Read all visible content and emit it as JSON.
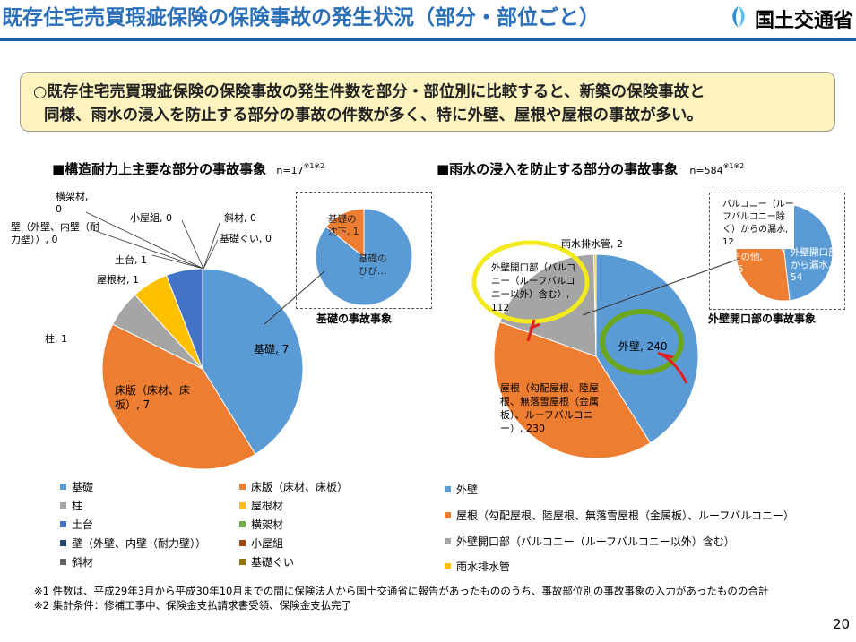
{
  "header": {
    "title": "既存住宅売買瑕疵保険の保険事故の発生状況（部分・部位ごと）",
    "logo_text": "国土交通省"
  },
  "summary": {
    "line1": "○既存住宅売買瑕疵保険の保険事故の発生件数を部分・部位別に比較すると、新築の保険事故と",
    "line2": "同様、雨水の浸入を防止する部分の事故の件数が多く、特に外壁、屋根や屋根の事故が多い。"
  },
  "colors": {
    "blue": "#5b9bd5",
    "orange": "#ed7d31",
    "gray": "#a5a5a5",
    "yellow": "#ffc000",
    "darkblue": "#4472c4",
    "green": "#70ad47",
    "navy": "#264478",
    "brown": "#9e480e",
    "darkgray": "#636363",
    "olive": "#997300"
  },
  "chart_data": [
    {
      "type": "pie",
      "title": "■構造耐力上主要な部分の事故事象",
      "n_note": "n=17",
      "n_sup": "※1※2",
      "slices": [
        {
          "name": "基礎",
          "value": 7,
          "label": "基礎, 7"
        },
        {
          "name": "床版（床材、床板）",
          "value": 7,
          "label": "床版（床材、床板）, 7"
        },
        {
          "name": "柱",
          "value": 1,
          "label": "柱, 1"
        },
        {
          "name": "屋根材",
          "value": 1,
          "label": "屋根材, 1"
        },
        {
          "name": "土台",
          "value": 1,
          "label": "土台, 1"
        },
        {
          "name": "横架材",
          "value": 0,
          "label": "横架材, 0"
        },
        {
          "name": "壁（外壁、内壁（耐力壁））",
          "value": 0,
          "label": "壁（外壁、内壁（耐力壁））, 0"
        },
        {
          "name": "小屋組",
          "value": 0,
          "label": "小屋組, 0"
        },
        {
          "name": "斜材",
          "value": 0,
          "label": "斜材, 0"
        },
        {
          "name": "基礎ぐい",
          "value": 0,
          "label": "基礎ぐい, 0"
        }
      ],
      "legend": [
        "基礎",
        "床版（床材、床板）",
        "柱",
        "屋根材",
        "土台",
        "横架材",
        "壁（外壁、内壁（耐力壁））",
        "小屋組",
        "斜材",
        "基礎ぐい"
      ],
      "inset": {
        "type": "pie",
        "title": "基礎の事故事象",
        "slices": [
          {
            "name": "基礎のひび割れ",
            "value": 6,
            "label": "基礎のひび…"
          },
          {
            "name": "基礎の沈下",
            "value": 1,
            "label": "基礎の沈下, 1"
          }
        ]
      }
    },
    {
      "type": "pie",
      "title": "■雨水の浸入を防止する部分の事故事象",
      "n_note": "n=584",
      "n_sup": "※1※2",
      "slices": [
        {
          "name": "外壁",
          "value": 240,
          "label": "外壁, 240"
        },
        {
          "name": "屋根（勾配屋根、陸屋根、無落雪屋根（金属板）、ルーフバルコニー）",
          "value": 230,
          "label": "屋根（勾配屋根、陸屋根、無落雪屋根（金属板）、ルーフバルコニー）, 230"
        },
        {
          "name": "外壁開口部（バルコニー（ルーフバルコニー以外）含む）",
          "value": 112,
          "label": "外壁開口部（バルコニー（ルーフバルコニー以外）含む）, 112"
        },
        {
          "name": "雨水排水管",
          "value": 2,
          "label": "雨水排水管, 2"
        }
      ],
      "legend": [
        "外壁",
        "屋根（勾配屋根、陸屋根、無落雪屋根（金属板）、ルーフバルコニー）",
        "外壁開口部（バルコニー（ルーフバルコニー以外）含む）",
        "雨水排水管"
      ],
      "inset": {
        "type": "pie",
        "title": "外壁開口部の事故事象",
        "slices": [
          {
            "name": "外壁開口部から漏水",
            "value": 54,
            "label": "外壁開口部から漏水, 54"
          },
          {
            "name": "その他",
            "value": 46,
            "label": "その他, 46"
          },
          {
            "name": "バルコニー（ルーフバルコニー除く）からの漏水",
            "value": 12,
            "label": "バルコニー（ルーフバルコニー除く）からの漏水, 12"
          }
        ]
      }
    }
  ],
  "notes": {
    "note1": "※1 件数は、平成29年3月から平成30年10月までの間に保険法人から国土交通省に報告があったもののうち、事故部位別の事故事象の入力があったものの合計",
    "note2": "※2 集計条件：修補工事中、保険金支払請求書受領、保険金支払完了"
  },
  "page_number": "20"
}
